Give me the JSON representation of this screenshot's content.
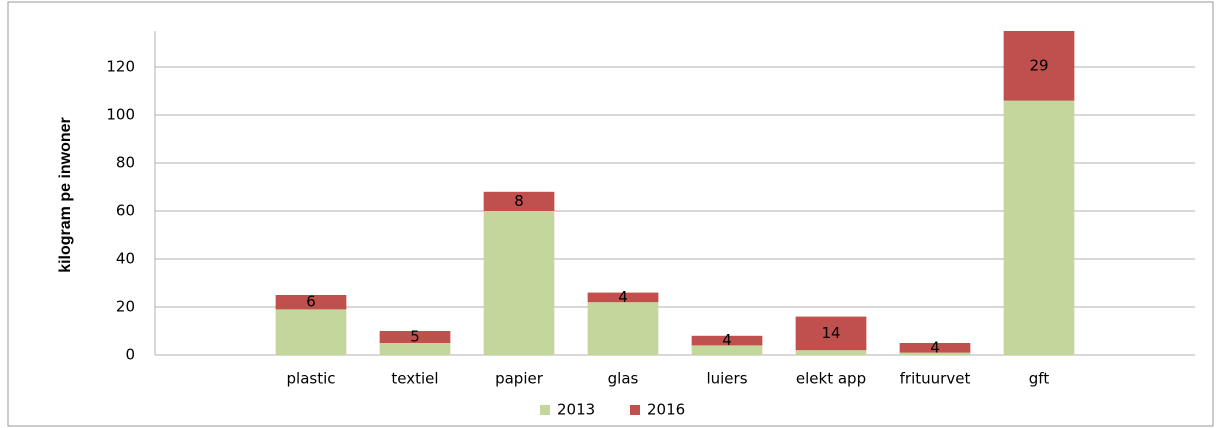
{
  "chart_data": {
    "type": "stacked_bar",
    "y_label": "kilogram pe inwoner",
    "categories": [
      null,
      "plastic",
      "textiel",
      "papier",
      "glas",
      "luiers",
      "elekt app",
      "frituurvet",
      "gft",
      null
    ],
    "series": [
      {
        "name": "2013",
        "color": "#c3d69b",
        "values": [
          null,
          19,
          5,
          60,
          22,
          4,
          2,
          1,
          106,
          null
        ]
      },
      {
        "name": "2016",
        "color": "#c0504d",
        "values": [
          null,
          6,
          5,
          8,
          4,
          4,
          14,
          4,
          29,
          null
        ],
        "labels": true
      }
    ],
    "ylim": [
      0,
      135
    ],
    "yticks": [
      0,
      20,
      40,
      60,
      80,
      100,
      120
    ],
    "grid": true,
    "legend": "bottom"
  }
}
